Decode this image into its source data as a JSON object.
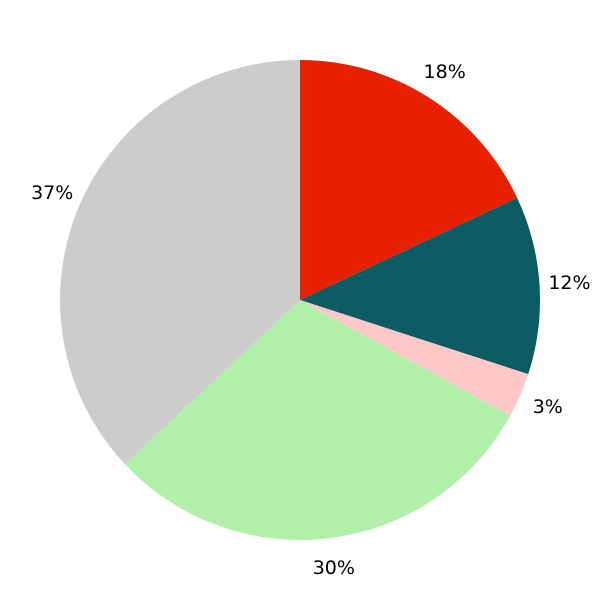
{
  "chart_data": {
    "type": "pie",
    "start": "top",
    "direction": "clockwise",
    "legend": "none",
    "slices": [
      {
        "value": 18,
        "label": "18%",
        "color": "#e62000"
      },
      {
        "value": 12,
        "label": "12%",
        "color": "#0b5b63"
      },
      {
        "value": 3,
        "label": "3%",
        "color": "#ffc8c8"
      },
      {
        "value": 30,
        "label": "30%",
        "color": "#b0f0a8"
      },
      {
        "value": 37,
        "label": "37%",
        "color": "#cccccc"
      }
    ]
  }
}
